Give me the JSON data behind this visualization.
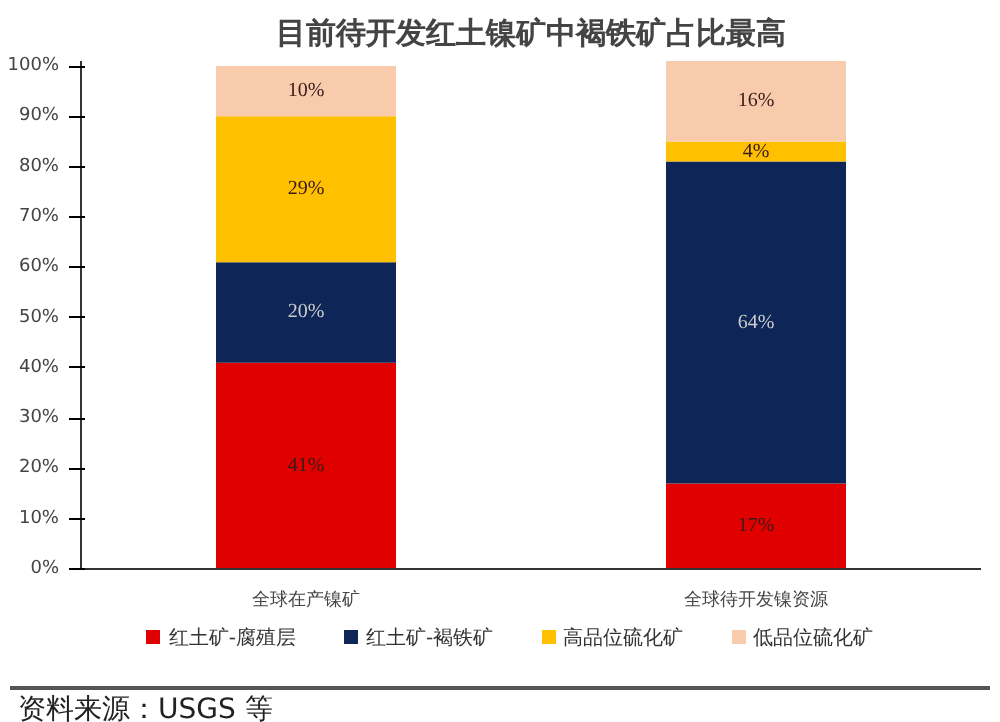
{
  "chart_data": {
    "type": "bar",
    "title": "目前待开发红土镍矿中褐铁矿占比最高",
    "categories": [
      "全球在产镍矿",
      "全球待开发镍资源"
    ],
    "stacked": true,
    "series": [
      {
        "name": "红土矿-腐殖层",
        "color": "#e00000",
        "values": [
          41,
          17
        ],
        "value_labels": [
          "41%",
          "17%"
        ]
      },
      {
        "name": "红土矿-褐铁矿",
        "color": "#0d2557",
        "values": [
          20,
          64
        ],
        "value_labels": [
          "20%",
          "64%"
        ]
      },
      {
        "name": "高品位硫化矿",
        "color": "#ffc000",
        "values": [
          29,
          4
        ],
        "value_labels": [
          "29%",
          "4%"
        ]
      },
      {
        "name": "低品位硫化矿",
        "color": "#f8cbad",
        "values": [
          10,
          16
        ],
        "value_labels": [
          "10%",
          "16%"
        ]
      }
    ],
    "ylim": [
      0,
      101
    ],
    "yticks": [
      {
        "value": 0,
        "label": "0%"
      },
      {
        "value": 10,
        "label": "10%"
      },
      {
        "value": 20,
        "label": "20%"
      },
      {
        "value": 30,
        "label": "30%"
      },
      {
        "value": 40,
        "label": "40%"
      },
      {
        "value": 50,
        "label": "50%"
      },
      {
        "value": 60,
        "label": "60%"
      },
      {
        "value": 70,
        "label": "70%"
      },
      {
        "value": 80,
        "label": "80%"
      },
      {
        "value": 90,
        "label": "90%"
      },
      {
        "value": 100,
        "label": "100%"
      }
    ],
    "grid": false,
    "data_labels": true,
    "legend": "bottom",
    "annotations": [
      "资料来源：USGS 等"
    ]
  }
}
